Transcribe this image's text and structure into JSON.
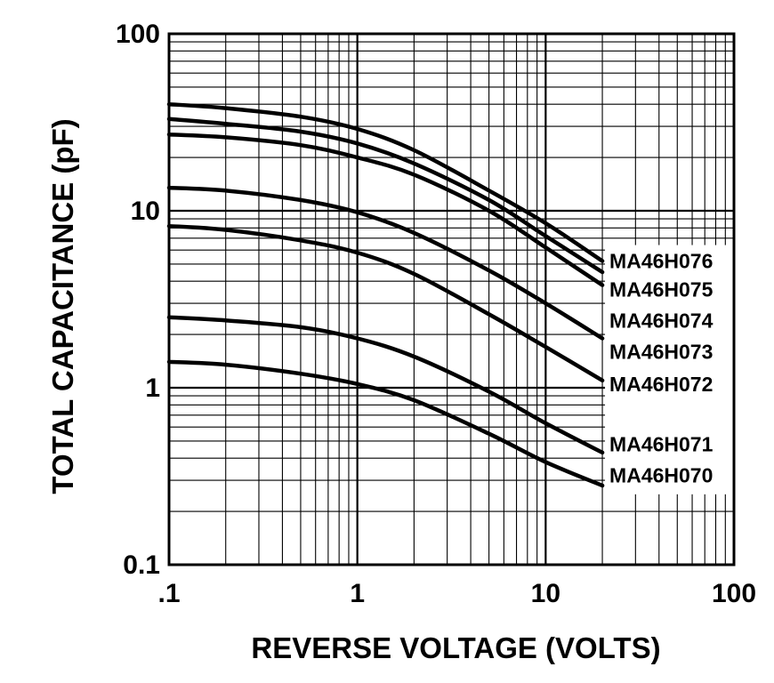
{
  "chart_data": {
    "type": "line",
    "title": "",
    "xlabel": "REVERSE VOLTAGE (VOLTS)",
    "ylabel": "TOTAL CAPACITANCE (pF)",
    "xscale": "log",
    "yscale": "log",
    "xlim": [
      0.1,
      100
    ],
    "ylim": [
      0.1,
      100
    ],
    "grid": true,
    "x_tick_labels": [
      ".1",
      "1",
      "10",
      "100"
    ],
    "y_tick_labels": [
      "0.1",
      "1",
      "10",
      "100"
    ],
    "x": [
      0.1,
      0.2,
      0.5,
      1,
      2,
      5,
      10,
      20
    ],
    "series": [
      {
        "name": "MA46H076",
        "values": [
          40,
          38,
          34,
          29,
          22,
          13,
          8.5,
          5.2
        ]
      },
      {
        "name": "MA46H075",
        "values": [
          33,
          31,
          28,
          24,
          18.5,
          11.5,
          7.2,
          4.5
        ]
      },
      {
        "name": "MA46H074",
        "values": [
          27,
          26,
          23.5,
          20,
          16,
          10,
          6.2,
          3.8
        ]
      },
      {
        "name": "MA46H073",
        "values": [
          13.5,
          13,
          11.5,
          9.8,
          7.5,
          4.6,
          3.0,
          1.9
        ]
      },
      {
        "name": "MA46H072",
        "values": [
          8.2,
          7.8,
          6.8,
          5.8,
          4.4,
          2.6,
          1.7,
          1.1
        ]
      },
      {
        "name": "MA46H071",
        "values": [
          2.5,
          2.4,
          2.2,
          1.9,
          1.5,
          0.95,
          0.63,
          0.43
        ]
      },
      {
        "name": "MA46H070",
        "values": [
          1.4,
          1.35,
          1.2,
          1.05,
          0.85,
          0.55,
          0.38,
          0.28
        ]
      }
    ]
  },
  "legend": {
    "placement": "right",
    "label_y_values": [
      5.2,
      3.6,
      2.4,
      1.6,
      1.05,
      0.48,
      0.32
    ]
  },
  "colors": {
    "line": "#000000",
    "grid": "#000000",
    "background": "#ffffff"
  }
}
